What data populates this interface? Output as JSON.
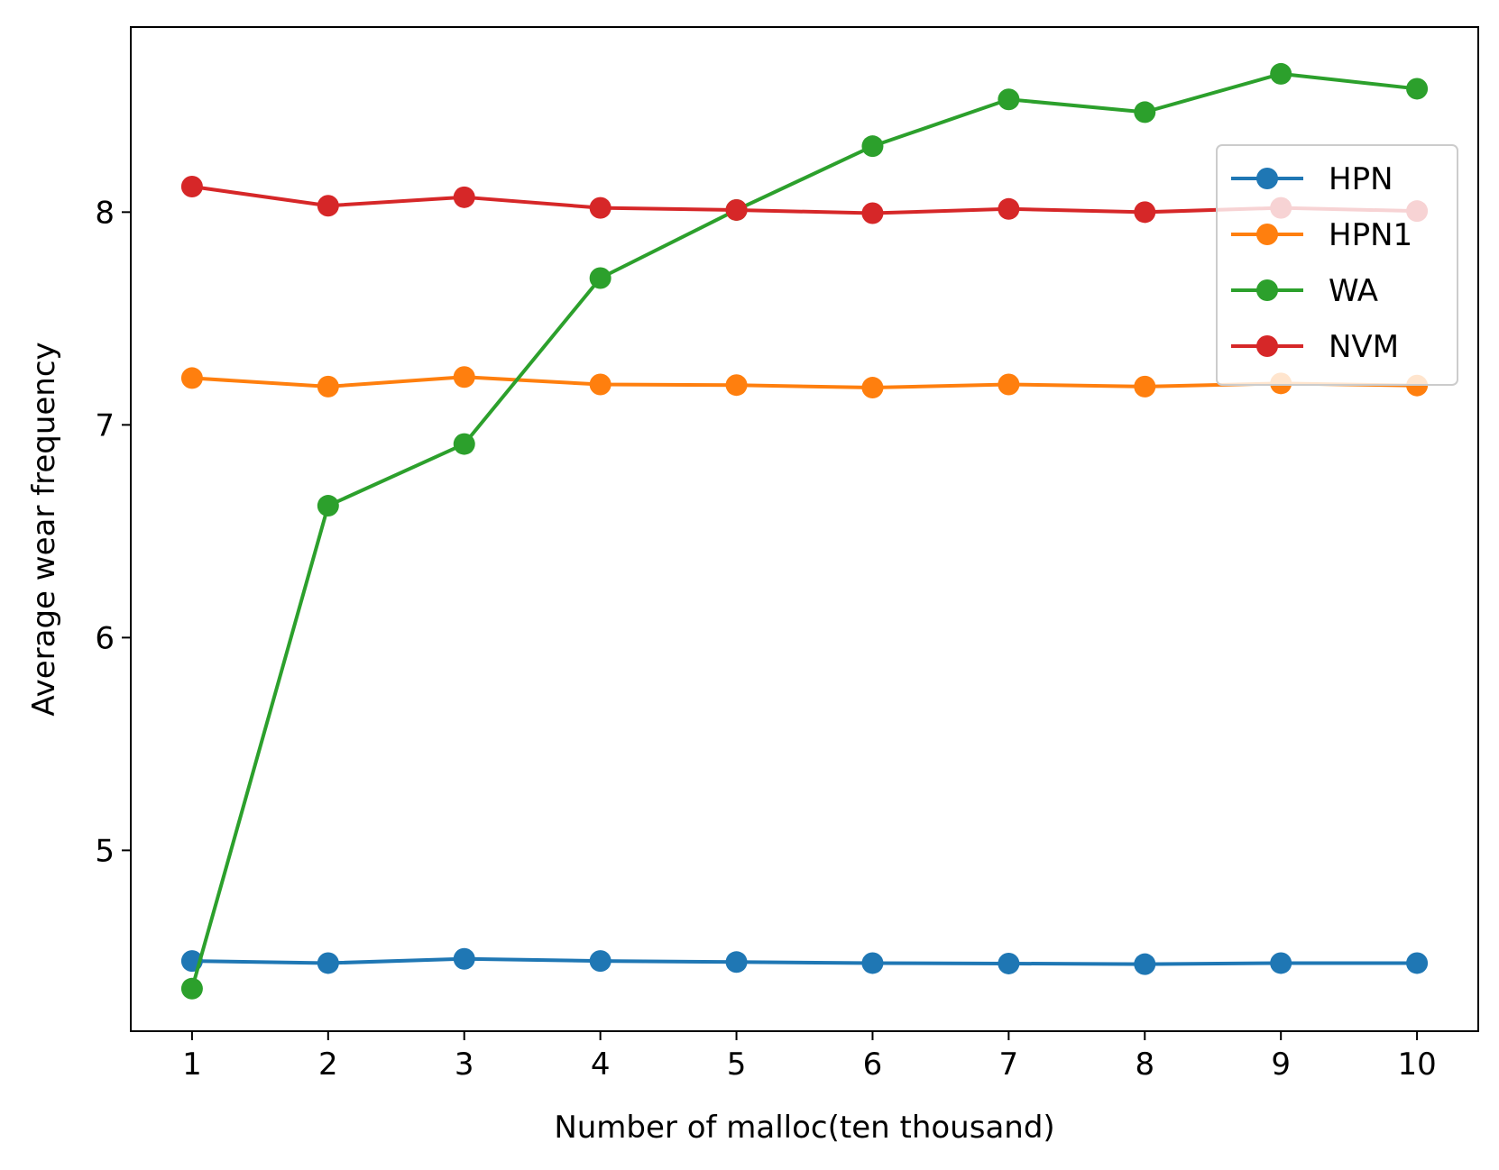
{
  "chart_data": {
    "type": "line",
    "title": "",
    "xlabel": "Number of malloc(ten thousand)",
    "ylabel": "Average wear frequency",
    "x": [
      1,
      2,
      3,
      4,
      5,
      6,
      7,
      8,
      9,
      10
    ],
    "xticks": [
      "1",
      "2",
      "3",
      "4",
      "5",
      "6",
      "7",
      "8",
      "9",
      "10"
    ],
    "yticks": [
      "5",
      "6",
      "7",
      "8"
    ],
    "yticks_values": [
      5,
      6,
      7,
      8
    ],
    "xlim": [
      0.55,
      10.45
    ],
    "ylim": [
      4.15,
      8.87
    ],
    "grid": false,
    "legend_position": "upper-right",
    "series": [
      {
        "name": "HPN",
        "color": "#1f77b4",
        "marker": "circle",
        "values": [
          4.48,
          4.47,
          4.49,
          4.48,
          4.475,
          4.47,
          4.468,
          4.465,
          4.47,
          4.47
        ]
      },
      {
        "name": "HPN1",
        "color": "#ff7f0e",
        "marker": "circle",
        "values": [
          7.22,
          7.18,
          7.225,
          7.19,
          7.187,
          7.175,
          7.19,
          7.18,
          7.195,
          7.185
        ]
      },
      {
        "name": "WA",
        "color": "#2ca02c",
        "marker": "circle",
        "values": [
          4.35,
          6.62,
          6.91,
          7.69,
          8.01,
          8.31,
          8.53,
          8.47,
          8.65,
          8.58
        ]
      },
      {
        "name": "NVM",
        "color": "#d62728",
        "marker": "circle",
        "values": [
          8.12,
          8.03,
          8.07,
          8.02,
          8.01,
          7.995,
          8.015,
          8.0,
          8.02,
          8.005
        ]
      }
    ]
  }
}
